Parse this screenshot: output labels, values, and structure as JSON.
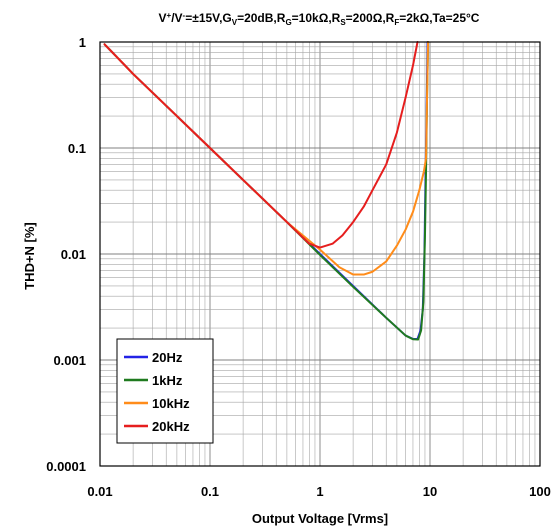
{
  "chart_data": {
    "type": "line",
    "title_parts": [
      {
        "t": "V",
        "s": "n"
      },
      {
        "t": "+",
        "s": "sup"
      },
      {
        "t": "/V",
        "s": "n"
      },
      {
        "t": "-",
        "s": "sup"
      },
      {
        "t": "=±15V,G",
        "s": "n"
      },
      {
        "t": "V",
        "s": "sub"
      },
      {
        "t": "=20dB,R",
        "s": "n"
      },
      {
        "t": "G",
        "s": "sub"
      },
      {
        "t": "=10kΩ,R",
        "s": "n"
      },
      {
        "t": "S",
        "s": "sub"
      },
      {
        "t": "=200Ω,R",
        "s": "n"
      },
      {
        "t": "F",
        "s": "sub"
      },
      {
        "t": "=2kΩ,Ta=25°C",
        "s": "n"
      }
    ],
    "xlabel": "Output Voltage [Vrms]",
    "ylabel": "THD+N [%]",
    "x_scale": "log",
    "y_scale": "log",
    "xlim": [
      0.01,
      100
    ],
    "ylim": [
      0.0001,
      1
    ],
    "x_ticks": [
      {
        "value": 0.01,
        "label": "0.01"
      },
      {
        "value": 0.1,
        "label": "0.1"
      },
      {
        "value": 1,
        "label": "1"
      },
      {
        "value": 10,
        "label": "10"
      },
      {
        "value": 100,
        "label": "100"
      }
    ],
    "y_ticks": [
      {
        "value": 1,
        "label": "1"
      },
      {
        "value": 0.1,
        "label": "0.1"
      },
      {
        "value": 0.01,
        "label": "0.01"
      },
      {
        "value": 0.001,
        "label": "0.001"
      },
      {
        "value": 0.0001,
        "label": "0.0001"
      }
    ],
    "grid": true,
    "legend_position": "bottom-left",
    "series": [
      {
        "name": "20Hz",
        "color": "#2323e6",
        "points": [
          [
            0.011,
            0.95
          ],
          [
            0.02,
            0.5
          ],
          [
            0.05,
            0.2
          ],
          [
            0.1,
            0.1
          ],
          [
            0.2,
            0.05
          ],
          [
            0.5,
            0.02
          ],
          [
            1,
            0.01
          ],
          [
            2,
            0.005
          ],
          [
            4,
            0.0025
          ],
          [
            6,
            0.0017
          ],
          [
            7,
            0.00158
          ],
          [
            7.7,
            0.00158
          ],
          [
            8.2,
            0.0019
          ],
          [
            8.6,
            0.003
          ],
          [
            8.9,
            0.01
          ],
          [
            9.1,
            0.05
          ],
          [
            9.3,
            0.2
          ],
          [
            9.5,
            1
          ]
        ]
      },
      {
        "name": "1kHz",
        "color": "#1f7a1f",
        "points": [
          [
            0.011,
            0.95
          ],
          [
            0.02,
            0.5
          ],
          [
            0.05,
            0.2
          ],
          [
            0.1,
            0.1
          ],
          [
            0.2,
            0.05
          ],
          [
            0.5,
            0.02
          ],
          [
            1,
            0.0098
          ],
          [
            2,
            0.0049
          ],
          [
            4,
            0.0025
          ],
          [
            6,
            0.0017
          ],
          [
            7,
            0.00157
          ],
          [
            7.8,
            0.00156
          ],
          [
            8.3,
            0.0019
          ],
          [
            8.7,
            0.0035
          ],
          [
            9,
            0.015
          ],
          [
            9.2,
            0.06
          ],
          [
            9.4,
            0.3
          ],
          [
            9.6,
            1
          ]
        ]
      },
      {
        "name": "10kHz",
        "color": "#ff8c1a",
        "points": [
          [
            0.011,
            0.95
          ],
          [
            0.02,
            0.5
          ],
          [
            0.05,
            0.2
          ],
          [
            0.1,
            0.1
          ],
          [
            0.2,
            0.05
          ],
          [
            0.5,
            0.02
          ],
          [
            1,
            0.011
          ],
          [
            1.5,
            0.0075
          ],
          [
            2,
            0.0064
          ],
          [
            2.5,
            0.0064
          ],
          [
            3,
            0.0068
          ],
          [
            4,
            0.0085
          ],
          [
            5,
            0.012
          ],
          [
            6,
            0.017
          ],
          [
            7,
            0.025
          ],
          [
            8,
            0.04
          ],
          [
            8.8,
            0.06
          ],
          [
            9.2,
            0.08
          ],
          [
            9.4,
            0.3
          ],
          [
            9.6,
            1
          ]
        ]
      },
      {
        "name": "20kHz",
        "color": "#e61e1e",
        "points": [
          [
            0.011,
            0.95
          ],
          [
            0.02,
            0.5
          ],
          [
            0.05,
            0.2
          ],
          [
            0.1,
            0.1
          ],
          [
            0.2,
            0.05
          ],
          [
            0.5,
            0.02
          ],
          [
            0.8,
            0.0125
          ],
          [
            1,
            0.0115
          ],
          [
            1.3,
            0.0125
          ],
          [
            1.6,
            0.015
          ],
          [
            2,
            0.02
          ],
          [
            2.5,
            0.028
          ],
          [
            3,
            0.04
          ],
          [
            4,
            0.07
          ],
          [
            5,
            0.14
          ],
          [
            6,
            0.3
          ],
          [
            7,
            0.6
          ],
          [
            7.7,
            1
          ]
        ]
      }
    ]
  }
}
